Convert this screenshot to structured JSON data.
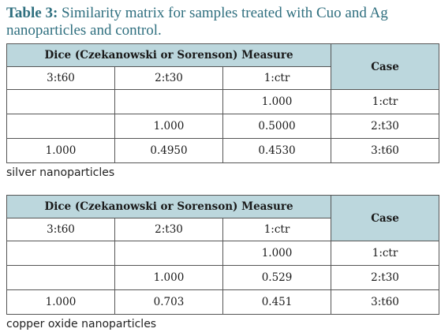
{
  "caption": {
    "label": "Table 3:",
    "text": "Similarity matrix for samples treated with Cuo and Ag nanoparticles and control."
  },
  "tables": [
    {
      "header": "Dice (Czekanowski or Sorenson) Measure",
      "case_header": "Case",
      "columns": [
        "3:t60",
        "2:t30",
        "1:ctr"
      ],
      "rows": [
        {
          "cells": [
            "",
            "",
            "1.000"
          ],
          "case": "1:ctr"
        },
        {
          "cells": [
            "",
            "1.000",
            "0.5000"
          ],
          "case": "2:t30"
        },
        {
          "cells": [
            "1.000",
            "0.4950",
            "0.4530"
          ],
          "case": "3:t60"
        }
      ],
      "note": "silver nanoparticles"
    },
    {
      "header": "Dice (Czekanowski or Sorenson) Measure",
      "case_header": "Case",
      "columns": [
        "3:t60",
        "2:t30",
        "1:ctr"
      ],
      "rows": [
        {
          "cells": [
            "",
            "",
            "1.000"
          ],
          "case": "1:ctr"
        },
        {
          "cells": [
            "",
            "1.000",
            "0.529"
          ],
          "case": "2:t30"
        },
        {
          "cells": [
            "1.000",
            "0.703",
            "0.451"
          ],
          "case": "3:t60"
        }
      ],
      "note": "copper oxide nanoparticles"
    }
  ]
}
